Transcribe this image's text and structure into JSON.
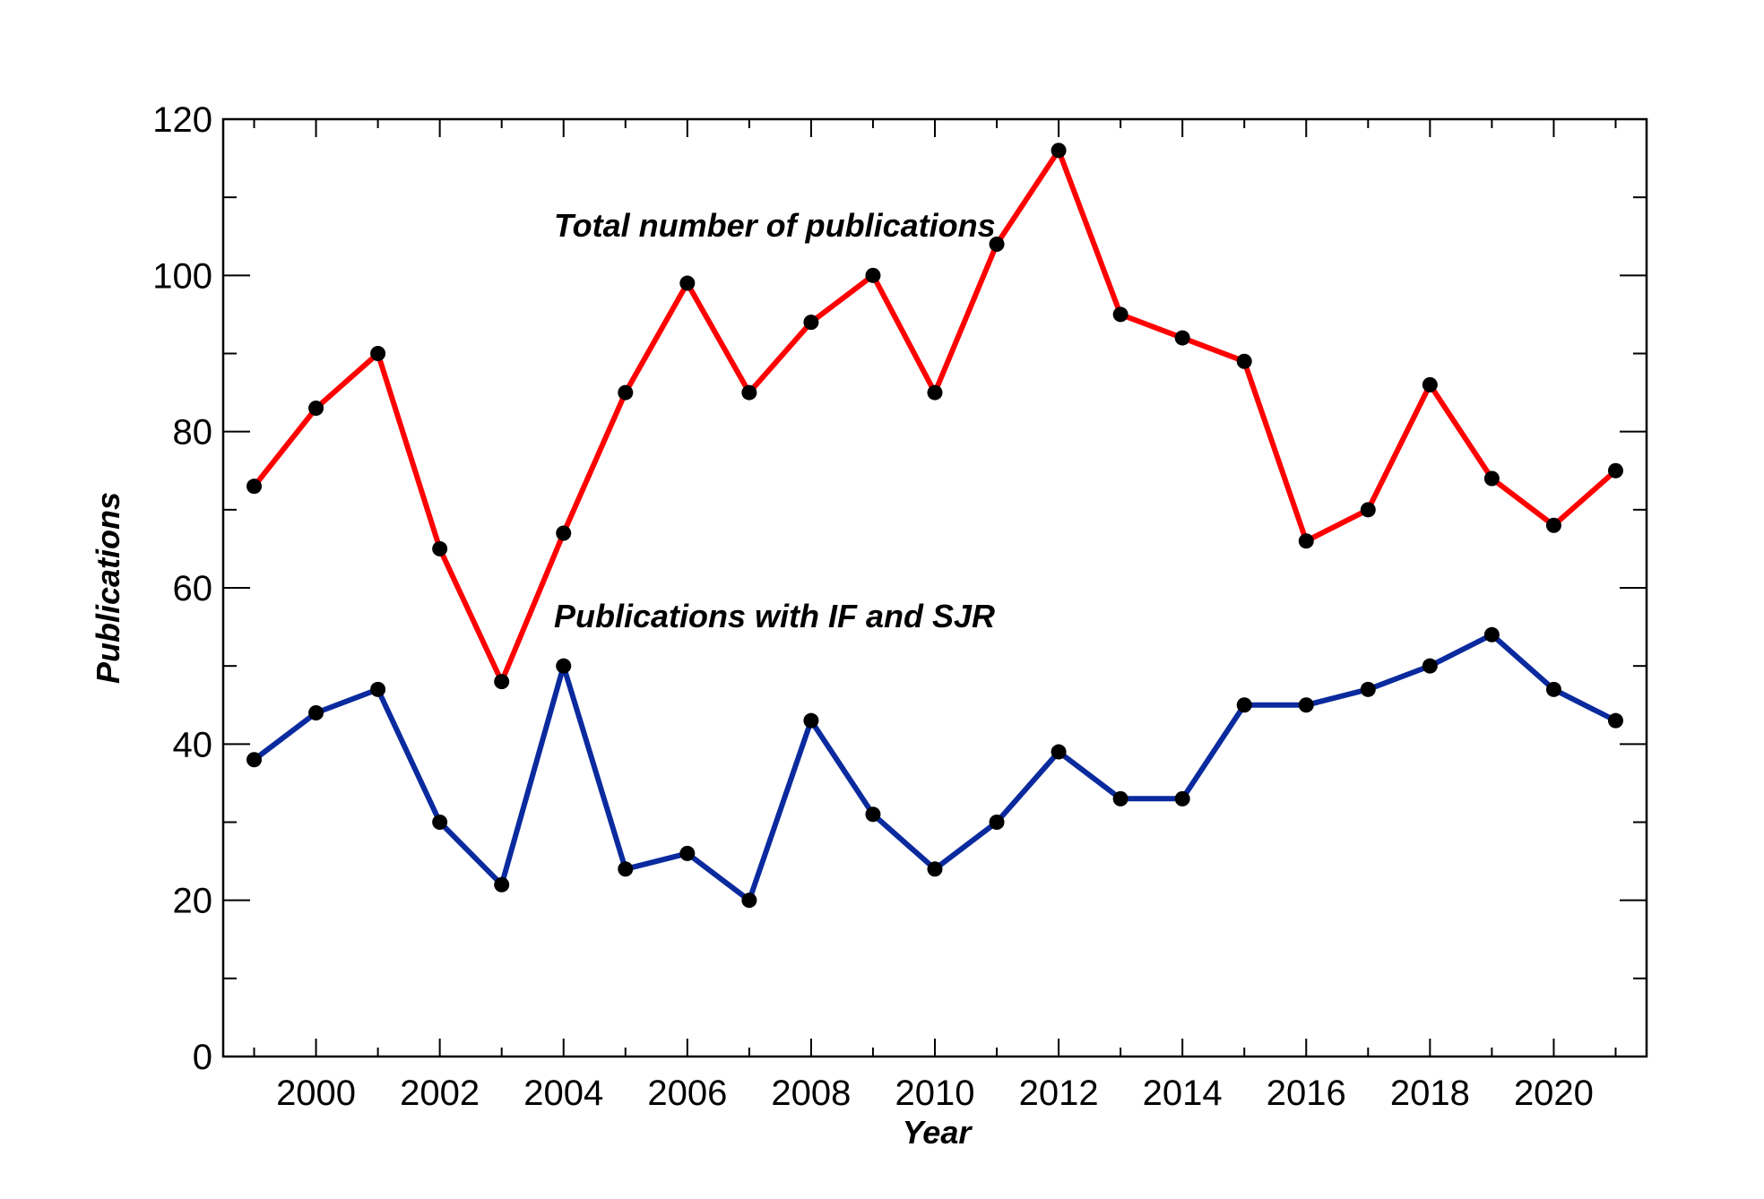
{
  "chart_data": {
    "type": "line",
    "title": "",
    "xlabel": "Year",
    "ylabel": "Publications",
    "xlim": [
      1998.5,
      2021.5
    ],
    "ylim": [
      0,
      120
    ],
    "x_ticks": [
      2000,
      2002,
      2004,
      2006,
      2008,
      2010,
      2012,
      2014,
      2016,
      2018,
      2020
    ],
    "y_ticks": [
      0,
      20,
      40,
      60,
      80,
      100,
      120
    ],
    "grid": false,
    "x": [
      1999,
      2000,
      2001,
      2002,
      2003,
      2004,
      2005,
      2006,
      2007,
      2008,
      2009,
      2010,
      2011,
      2012,
      2013,
      2014,
      2015,
      2016,
      2017,
      2018,
      2019,
      2020,
      2021
    ],
    "series": [
      {
        "key": "total",
        "color": "#ff0000",
        "values": [
          73,
          83,
          90,
          65,
          48,
          67,
          85,
          99,
          85,
          94,
          100,
          85,
          104,
          116,
          95,
          92,
          89,
          66,
          70,
          86,
          74,
          68,
          75
        ]
      },
      {
        "key": "with_if_sjr",
        "color": "#0a2a9e",
        "values": [
          38,
          44,
          47,
          30,
          22,
          50,
          24,
          26,
          20,
          43,
          31,
          24,
          30,
          39,
          33,
          33,
          45,
          45,
          47,
          50,
          54,
          47,
          43
        ]
      }
    ],
    "marker_color": "#000000",
    "annotations": [
      {
        "text": "Total number of publications",
        "series": "total"
      },
      {
        "text": "Publications with IF and SJR",
        "series": "with_if_sjr"
      }
    ]
  }
}
